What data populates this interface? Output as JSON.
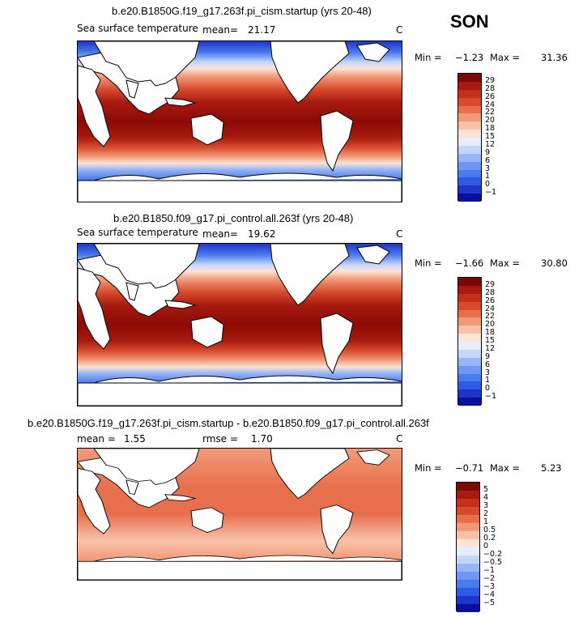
{
  "season": "SON",
  "colors": {
    "sst_scale": [
      "#08109c",
      "#1e35c8",
      "#2f5ae6",
      "#4a7bee",
      "#6d97f2",
      "#97b6f6",
      "#c4d6fa",
      "#e6edfc",
      "#fde3d6",
      "#f9c2a8",
      "#f29a78",
      "#e86f4c",
      "#d84a2c",
      "#c5301b",
      "#a81a0e",
      "#7d0703"
    ],
    "diff_scale": [
      "#08109c",
      "#1e35c8",
      "#2f5ae6",
      "#4a7bee",
      "#6d97f2",
      "#97b6f6",
      "#c4d6fa",
      "#e6edfc",
      "#fde3d6",
      "#f9c2a8",
      "#f29a78",
      "#e86f4c",
      "#d84a2c",
      "#c5301b",
      "#a81a0e",
      "#7d0703"
    ],
    "land": "#ffffff"
  },
  "panels": [
    {
      "title": "b.e20.B1850G.f19_g17.263f.pi_cism.startup (yrs 20-48)",
      "field": "Sea surface temperature",
      "mean_label": "mean=",
      "mean": "21.17",
      "units": "C",
      "min_label": "Min =",
      "min": "−1.23",
      "max_label": "Max =",
      "max": "31.36",
      "colorbar_labels": [
        "29",
        "28",
        "26",
        "24",
        "22",
        "20",
        "18",
        "15",
        "12",
        "9",
        "6",
        "3",
        "1",
        "0",
        "−1"
      ]
    },
    {
      "title": "b.e20.B1850.f09_g17.pi_control.all.263f (yrs 20-48)",
      "field": "Sea surface temperature",
      "mean_label": "mean=",
      "mean": "19.62",
      "units": "C",
      "min_label": "Min =",
      "min": "−1.66",
      "max_label": "Max =",
      "max": "30.80",
      "colorbar_labels": [
        "29",
        "28",
        "26",
        "24",
        "22",
        "20",
        "18",
        "15",
        "12",
        "9",
        "6",
        "3",
        "1",
        "0",
        "−1"
      ]
    },
    {
      "title": "b.e20.B1850G.f19_g17.263f.pi_cism.startup - b.e20.B1850.f09_g17.pi_control.all.263f",
      "mean_label": "mean =",
      "mean": "1.55",
      "rmse_label": "rmse =",
      "rmse": "1.70",
      "units": "C",
      "min_label": "Min =",
      "min": "−0.71",
      "max_label": "Max =",
      "max": "5.23",
      "colorbar_labels": [
        "5",
        "4",
        "3",
        "2",
        "1",
        "0.5",
        "0.2",
        "0",
        "−0.2",
        "−0.5",
        "−1",
        "−2",
        "−3",
        "−4",
        "−5"
      ]
    }
  ]
}
